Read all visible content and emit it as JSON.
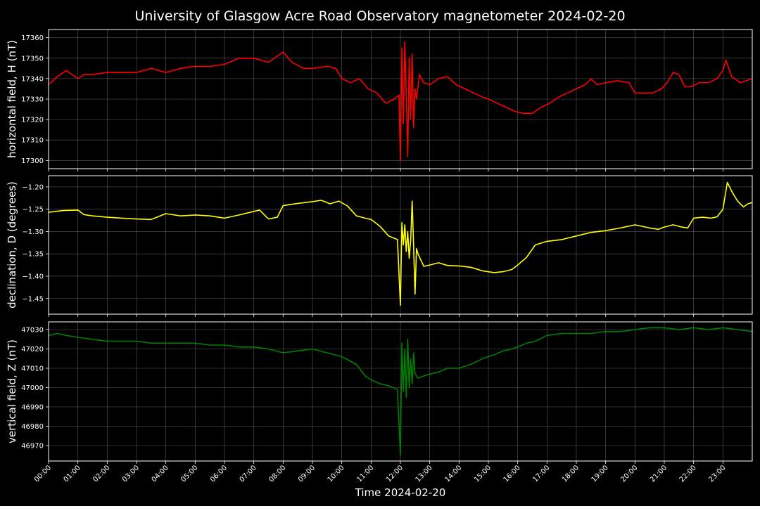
{
  "title": "University of Glasgow Acre Road Observatory magnetometer 2024-02-20",
  "xlabel": "Time 2024-02-20",
  "x_ticks": [
    "00:00",
    "01:00",
    "02:00",
    "03:00",
    "04:00",
    "05:00",
    "06:00",
    "07:00",
    "08:00",
    "09:00",
    "10:00",
    "11:00",
    "12:00",
    "13:00",
    "14:00",
    "15:00",
    "16:00",
    "17:00",
    "18:00",
    "19:00",
    "20:00",
    "21:00",
    "22:00",
    "23:00"
  ],
  "colors": {
    "background": "#000000",
    "grid": "#808080",
    "axes": "#ffffff",
    "H": "#ff0000",
    "D": "#ffff00",
    "Z": "#008000"
  },
  "chart_data": [
    {
      "type": "line",
      "ylabel": "horizontal field, H (nT)",
      "color": "#ff0000",
      "xlim": [
        0,
        24
      ],
      "ylim": [
        17296,
        17364
      ],
      "yticks": [
        17300,
        17310,
        17320,
        17330,
        17340,
        17350,
        17360
      ],
      "grid": true,
      "x": [
        0,
        0.3,
        0.6,
        1.0,
        1.2,
        1.5,
        2.0,
        2.5,
        3.0,
        3.5,
        4.0,
        4.5,
        5.0,
        5.5,
        6.0,
        6.5,
        7.0,
        7.5,
        7.8,
        8.0,
        8.3,
        8.7,
        9.0,
        9.5,
        9.8,
        10.0,
        10.3,
        10.6,
        10.9,
        11.2,
        11.5,
        11.8,
        11.95,
        12.0,
        12.05,
        12.1,
        12.15,
        12.2,
        12.25,
        12.3,
        12.35,
        12.4,
        12.45,
        12.5,
        12.55,
        12.65,
        12.8,
        13.0,
        13.3,
        13.6,
        13.9,
        14.2,
        14.5,
        14.8,
        15.0,
        15.3,
        15.6,
        15.9,
        16.2,
        16.5,
        16.8,
        17.1,
        17.4,
        17.7,
        18.0,
        18.3,
        18.5,
        18.7,
        19.0,
        19.4,
        19.8,
        20.0,
        20.3,
        20.6,
        20.9,
        21.1,
        21.3,
        21.5,
        21.7,
        21.9,
        22.2,
        22.5,
        22.8,
        23.0,
        23.1,
        23.3,
        23.6,
        23.8,
        24.0
      ],
      "y": [
        17337,
        17341,
        17344,
        17340,
        17342,
        17342,
        17343,
        17343,
        17343,
        17345,
        17343,
        17345,
        17346,
        17346,
        17347,
        17350,
        17350,
        17348,
        17351,
        17353,
        17348,
        17345,
        17345,
        17346,
        17345,
        17340,
        17338,
        17340,
        17335,
        17333,
        17328,
        17330,
        17332,
        17300,
        17355,
        17318,
        17358,
        17333,
        17302,
        17350,
        17320,
        17352,
        17316,
        17335,
        17330,
        17342,
        17338,
        17337,
        17340,
        17341,
        17337,
        17335,
        17333,
        17331,
        17330,
        17328,
        17326,
        17324,
        17323,
        17323,
        17326,
        17328,
        17331,
        17333,
        17335,
        17337,
        17340,
        17337,
        17338,
        17339,
        17338,
        17333,
        17333,
        17333,
        17335,
        17338,
        17343,
        17342,
        17336,
        17336,
        17338,
        17338,
        17340,
        17344,
        17349,
        17341,
        17338,
        17339,
        17340
      ]
    },
    {
      "type": "line",
      "ylabel": "declination, D (degrees)",
      "color": "#ffff00",
      "xlim": [
        0,
        24
      ],
      "ylim": [
        -1.485,
        -1.175
      ],
      "yticks": [
        -1.45,
        -1.4,
        -1.35,
        -1.3,
        -1.25,
        -1.2
      ],
      "grid": true,
      "x": [
        0,
        0.5,
        1.0,
        1.2,
        1.5,
        2.0,
        2.5,
        3.0,
        3.5,
        4.0,
        4.5,
        5.0,
        5.5,
        6.0,
        6.5,
        7.0,
        7.2,
        7.5,
        7.8,
        8.0,
        8.5,
        9.0,
        9.3,
        9.6,
        9.9,
        10.2,
        10.5,
        10.8,
        11.0,
        11.3,
        11.6,
        11.9,
        12.0,
        12.05,
        12.1,
        12.15,
        12.2,
        12.25,
        12.3,
        12.35,
        12.4,
        12.45,
        12.5,
        12.55,
        12.6,
        12.8,
        13.0,
        13.3,
        13.6,
        14.0,
        14.4,
        14.8,
        15.2,
        15.5,
        15.8,
        16.0,
        16.3,
        16.6,
        17.0,
        17.5,
        18.0,
        18.5,
        19.0,
        19.5,
        20.0,
        20.5,
        20.8,
        21.0,
        21.3,
        21.6,
        21.8,
        22.0,
        22.3,
        22.6,
        22.8,
        23.0,
        23.15,
        23.3,
        23.5,
        23.7,
        23.85,
        24.0
      ],
      "y": [
        -1.257,
        -1.253,
        -1.252,
        -1.262,
        -1.265,
        -1.268,
        -1.27,
        -1.272,
        -1.273,
        -1.26,
        -1.265,
        -1.263,
        -1.265,
        -1.27,
        -1.263,
        -1.255,
        -1.252,
        -1.272,
        -1.268,
        -1.242,
        -1.237,
        -1.233,
        -1.23,
        -1.238,
        -1.232,
        -1.243,
        -1.265,
        -1.27,
        -1.273,
        -1.288,
        -1.31,
        -1.318,
        -1.465,
        -1.28,
        -1.33,
        -1.285,
        -1.345,
        -1.3,
        -1.36,
        -1.32,
        -1.232,
        -1.33,
        -1.44,
        -1.338,
        -1.35,
        -1.378,
        -1.375,
        -1.37,
        -1.376,
        -1.377,
        -1.38,
        -1.388,
        -1.392,
        -1.39,
        -1.385,
        -1.375,
        -1.358,
        -1.33,
        -1.322,
        -1.318,
        -1.31,
        -1.302,
        -1.298,
        -1.292,
        -1.285,
        -1.292,
        -1.295,
        -1.29,
        -1.285,
        -1.29,
        -1.292,
        -1.27,
        -1.268,
        -1.27,
        -1.267,
        -1.25,
        -1.19,
        -1.21,
        -1.232,
        -1.245,
        -1.238,
        -1.235
      ]
    },
    {
      "type": "line",
      "ylabel": "vertical field, Z (nT)",
      "color": "#008000",
      "xlim": [
        0,
        24
      ],
      "ylim": [
        46962,
        47034
      ],
      "yticks": [
        46970,
        46980,
        46990,
        47000,
        47010,
        47020,
        47030
      ],
      "grid": true,
      "x": [
        0,
        0.3,
        0.6,
        1.0,
        1.5,
        2.0,
        2.5,
        3.0,
        3.5,
        4.0,
        4.5,
        5.0,
        5.5,
        6.0,
        6.5,
        7.0,
        7.5,
        8.0,
        8.5,
        9.0,
        9.5,
        10.0,
        10.5,
        10.8,
        11.0,
        11.3,
        11.6,
        11.9,
        12.0,
        12.05,
        12.1,
        12.15,
        12.2,
        12.25,
        12.3,
        12.35,
        12.4,
        12.45,
        12.5,
        12.6,
        12.8,
        13.0,
        13.3,
        13.6,
        14.0,
        14.4,
        14.8,
        15.2,
        15.5,
        15.8,
        16.0,
        16.3,
        16.6,
        17.0,
        17.5,
        18.0,
        18.5,
        19.0,
        19.5,
        20.0,
        20.5,
        21.0,
        21.5,
        22.0,
        22.5,
        23.0,
        23.5,
        24.0
      ],
      "y": [
        47027,
        47028,
        47027,
        47026,
        47025,
        47024,
        47024,
        47024,
        47023,
        47023,
        47023,
        47023,
        47022,
        47022,
        47021,
        47021,
        47020,
        47018,
        47019,
        47020,
        47018,
        47016,
        47012,
        47006,
        47004,
        47002,
        47001,
        46999,
        46965,
        47023,
        46998,
        47020,
        46995,
        47025,
        47000,
        47015,
        47002,
        47018,
        47007,
        47005,
        47006,
        47007,
        47008,
        47010,
        47010,
        47012,
        47015,
        47017,
        47019,
        47020,
        47021,
        47023,
        47024,
        47027,
        47028,
        47028,
        47028,
        47029,
        47029,
        47030,
        47031,
        47031,
        47030,
        47031,
        47030,
        47031,
        47030,
        47029
      ]
    }
  ]
}
